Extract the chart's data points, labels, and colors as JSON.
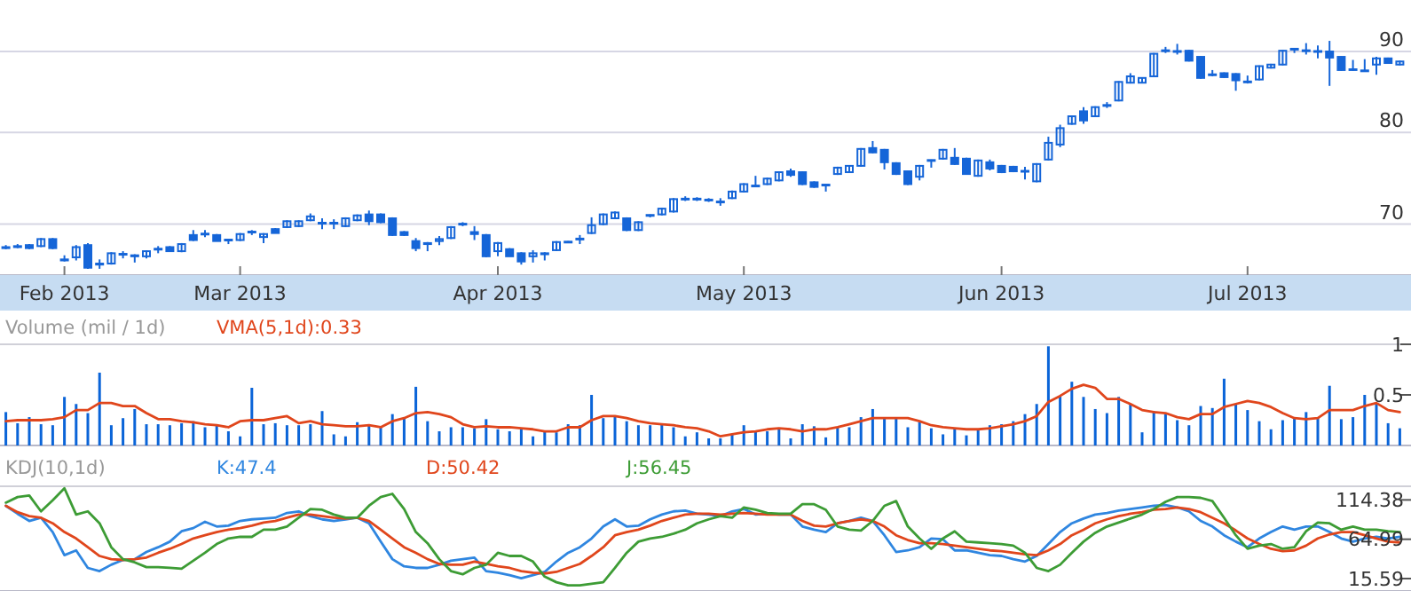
{
  "chart_data": [
    {
      "type": "candlestick",
      "color": "#1565d8",
      "log": "y",
      "grid": "y",
      "ylim": [
        65,
        97
      ],
      "yticks": [
        70,
        80,
        90
      ],
      "categories": [
        null,
        null,
        null,
        null,
        null,
        "Feb 2013",
        null,
        null,
        null,
        null,
        null,
        null,
        null,
        null,
        null,
        null,
        null,
        null,
        null,
        null,
        "Mar 2013",
        null,
        null,
        null,
        null,
        null,
        null,
        null,
        null,
        null,
        null,
        null,
        null,
        null,
        null,
        null,
        null,
        null,
        null,
        null,
        null,
        null,
        "Apr 2013",
        null,
        null,
        null,
        null,
        null,
        null,
        null,
        null,
        null,
        null,
        null,
        null,
        null,
        null,
        null,
        null,
        null,
        null,
        null,
        null,
        "May 2013",
        null,
        null,
        null,
        null,
        null,
        null,
        null,
        null,
        null,
        null,
        null,
        null,
        null,
        null,
        null,
        null,
        null,
        null,
        null,
        null,
        null,
        "Jun 2013",
        null,
        null,
        null,
        null,
        null,
        null,
        null,
        null,
        null,
        null,
        null,
        null,
        null,
        null,
        null,
        null,
        null,
        null,
        null,
        null,
        "Jul 2013",
        null,
        null,
        null,
        null,
        null,
        null,
        null,
        null,
        null,
        null,
        null,
        null,
        null
      ],
      "ohlc": [
        [
          67.6,
          67.9,
          67.5,
          67.7
        ],
        [
          67.8,
          68.0,
          67.6,
          67.7
        ],
        [
          67.9,
          68.0,
          67.5,
          67.6
        ],
        [
          67.8,
          68.6,
          67.7,
          68.5
        ],
        [
          68.5,
          68.6,
          67.5,
          67.6
        ],
        [
          66.4,
          66.9,
          66.3,
          66.5
        ],
        [
          66.7,
          67.9,
          66.4,
          67.7
        ],
        [
          67.9,
          68.1,
          65.6,
          65.7
        ],
        [
          66.1,
          66.5,
          65.6,
          66.0
        ],
        [
          66.1,
          67.2,
          66.0,
          67.1
        ],
        [
          67.0,
          67.3,
          66.6,
          67.0
        ],
        [
          66.9,
          67.0,
          66.2,
          66.8
        ],
        [
          66.8,
          67.4,
          66.6,
          67.3
        ],
        [
          67.5,
          67.8,
          67.1,
          67.5
        ],
        [
          67.7,
          67.8,
          67.3,
          67.3
        ],
        [
          67.3,
          68.1,
          67.2,
          68.0
        ],
        [
          68.9,
          69.4,
          68.3,
          68.4
        ],
        [
          69.0,
          69.4,
          68.7,
          69.0
        ],
        [
          68.9,
          69.0,
          68.3,
          68.3
        ],
        [
          68.4,
          68.5,
          68.0,
          68.4
        ],
        [
          68.4,
          69.1,
          68.3,
          69.0
        ],
        [
          69.2,
          69.4,
          68.9,
          69.2
        ],
        [
          68.7,
          69.1,
          68.1,
          69.0
        ],
        [
          69.5,
          69.6,
          69.1,
          69.1
        ],
        [
          69.7,
          70.4,
          69.6,
          70.3
        ],
        [
          69.8,
          70.4,
          69.7,
          70.3
        ],
        [
          70.4,
          71.1,
          70.3,
          70.8
        ],
        [
          70.1,
          70.6,
          69.5,
          70.1
        ],
        [
          70.1,
          70.5,
          69.5,
          70.1
        ],
        [
          69.8,
          70.7,
          69.7,
          70.6
        ],
        [
          70.4,
          71.0,
          70.3,
          70.9
        ],
        [
          71.0,
          71.4,
          69.9,
          70.3
        ],
        [
          71.0,
          71.1,
          70.1,
          70.2
        ],
        [
          70.6,
          70.7,
          68.8,
          68.9
        ],
        [
          69.2,
          69.3,
          68.8,
          68.9
        ],
        [
          68.3,
          68.6,
          67.3,
          67.6
        ],
        [
          68.1,
          68.2,
          67.3,
          68.0
        ],
        [
          68.3,
          68.8,
          67.9,
          68.5
        ],
        [
          68.6,
          69.8,
          68.5,
          69.7
        ],
        [
          70.0,
          70.2,
          69.8,
          70.0
        ],
        [
          69.2,
          69.8,
          68.4,
          69.0
        ],
        [
          68.9,
          69.0,
          66.7,
          66.8
        ],
        [
          67.3,
          68.2,
          66.8,
          68.1
        ],
        [
          67.5,
          67.6,
          66.8,
          66.8
        ],
        [
          67.1,
          67.2,
          66.0,
          66.3
        ],
        [
          66.8,
          67.4,
          66.2,
          67.1
        ],
        [
          67.1,
          67.2,
          66.4,
          67.0
        ],
        [
          67.4,
          68.3,
          67.3,
          68.2
        ],
        [
          68.2,
          68.3,
          68.1,
          68.2
        ],
        [
          68.5,
          68.9,
          68.0,
          68.5
        ],
        [
          69.1,
          70.7,
          69.0,
          69.9
        ],
        [
          70.0,
          71.1,
          69.9,
          71.0
        ],
        [
          70.6,
          71.3,
          70.5,
          71.2
        ],
        [
          70.6,
          70.7,
          69.3,
          69.4
        ],
        [
          69.4,
          70.3,
          69.3,
          70.2
        ],
        [
          70.9,
          71.0,
          70.7,
          70.9
        ],
        [
          71.0,
          71.7,
          70.9,
          71.6
        ],
        [
          71.3,
          72.7,
          71.2,
          72.6
        ],
        [
          72.6,
          72.9,
          72.4,
          72.6
        ],
        [
          72.6,
          72.8,
          72.4,
          72.6
        ],
        [
          72.5,
          72.7,
          72.3,
          72.5
        ],
        [
          72.3,
          72.7,
          71.9,
          72.3
        ],
        [
          72.7,
          73.5,
          72.6,
          73.4
        ],
        [
          73.4,
          74.3,
          73.3,
          74.2
        ],
        [
          74.0,
          75.1,
          73.9,
          74.0
        ],
        [
          74.2,
          74.9,
          74.1,
          74.8
        ],
        [
          74.6,
          75.6,
          74.5,
          75.5
        ],
        [
          75.6,
          75.9,
          75.0,
          75.2
        ],
        [
          75.5,
          75.6,
          74.1,
          74.2
        ],
        [
          74.4,
          74.5,
          73.8,
          73.9
        ],
        [
          74.1,
          74.2,
          73.4,
          74.1
        ],
        [
          75.3,
          76.1,
          75.2,
          76.0
        ],
        [
          75.5,
          76.3,
          75.4,
          76.2
        ],
        [
          76.2,
          78.2,
          76.1,
          78.1
        ],
        [
          78.2,
          79.0,
          77.6,
          77.7
        ],
        [
          78.0,
          78.1,
          75.8,
          76.6
        ],
        [
          76.5,
          76.6,
          75.2,
          75.3
        ],
        [
          75.6,
          75.7,
          74.1,
          74.2
        ],
        [
          75.0,
          76.3,
          74.6,
          76.2
        ],
        [
          76.8,
          76.9,
          76.0,
          76.8
        ],
        [
          77.0,
          78.1,
          76.9,
          78.0
        ],
        [
          77.1,
          78.2,
          76.3,
          76.4
        ],
        [
          77.0,
          77.1,
          75.2,
          75.3
        ],
        [
          75.1,
          76.9,
          75.0,
          76.8
        ],
        [
          76.6,
          76.9,
          75.7,
          75.9
        ],
        [
          76.2,
          76.3,
          75.4,
          75.5
        ],
        [
          76.1,
          76.2,
          75.5,
          75.6
        ],
        [
          75.6,
          76.1,
          74.7,
          75.6
        ],
        [
          74.5,
          76.5,
          74.4,
          76.4
        ],
        [
          76.9,
          79.5,
          76.8,
          78.8
        ],
        [
          78.6,
          80.9,
          78.3,
          80.5
        ],
        [
          81.0,
          82.0,
          80.9,
          81.9
        ],
        [
          82.5,
          83.0,
          81.0,
          81.4
        ],
        [
          81.9,
          83.1,
          81.8,
          83.0
        ],
        [
          83.2,
          83.6,
          82.9,
          83.2
        ],
        [
          83.8,
          86.2,
          83.7,
          86.1
        ],
        [
          86.0,
          87.2,
          85.9,
          86.8
        ],
        [
          86.0,
          86.7,
          85.9,
          86.6
        ],
        [
          86.8,
          89.8,
          86.7,
          89.7
        ],
        [
          90.1,
          90.6,
          89.8,
          90.1
        ],
        [
          90.0,
          91.0,
          89.6,
          90.0
        ],
        [
          90.1,
          90.2,
          88.7,
          88.8
        ],
        [
          89.3,
          89.4,
          86.5,
          86.6
        ],
        [
          87.0,
          87.6,
          86.8,
          87.0
        ],
        [
          87.2,
          87.3,
          86.6,
          86.7
        ],
        [
          87.1,
          87.2,
          85.0,
          86.3
        ],
        [
          86.1,
          86.9,
          85.9,
          86.1
        ],
        [
          86.4,
          88.2,
          86.3,
          88.1
        ],
        [
          87.9,
          88.4,
          87.8,
          88.3
        ],
        [
          88.3,
          90.2,
          88.2,
          90.1
        ],
        [
          90.3,
          90.4,
          89.8,
          90.3
        ],
        [
          90.1,
          91.1,
          89.6,
          90.1
        ],
        [
          90.0,
          90.8,
          89.1,
          90.0
        ],
        [
          90.0,
          91.4,
          85.6,
          89.2
        ],
        [
          89.3,
          89.4,
          87.5,
          87.6
        ],
        [
          87.7,
          88.9,
          87.5,
          87.6
        ],
        [
          87.5,
          89.0,
          87.4,
          87.5
        ],
        [
          88.3,
          89.3,
          87.0,
          89.1
        ],
        [
          89.1,
          89.2,
          88.4,
          88.5
        ],
        [
          88.3,
          88.8,
          88.2,
          88.7
        ]
      ]
    },
    {
      "type": "bar",
      "title": "Volume (mil / 1d)",
      "tick_labels": "y",
      "ylim": [
        0,
        1
      ],
      "yticks": [
        {
          "value": 1,
          "label": "1"
        },
        0.5
      ],
      "categories": [
        null,
        null,
        null,
        null,
        null,
        null,
        null,
        null,
        null,
        null,
        null,
        null,
        null,
        null,
        null,
        null,
        null,
        null,
        null,
        null,
        null,
        null,
        null,
        null,
        null,
        null,
        null,
        null,
        null,
        null,
        null,
        null,
        null,
        null,
        null,
        null,
        null,
        null,
        null,
        null,
        null,
        null,
        null,
        null,
        null,
        null,
        null,
        null,
        null,
        null,
        null,
        null,
        null,
        null,
        null,
        null,
        null,
        null,
        null,
        null,
        null,
        null,
        null,
        null,
        null,
        null,
        null,
        null,
        null,
        null,
        null,
        null,
        null,
        null,
        null,
        null,
        null,
        null,
        null,
        null,
        null,
        null,
        null,
        null,
        null,
        null,
        null,
        null,
        null,
        null,
        null,
        null,
        null,
        null,
        null,
        null,
        null,
        null,
        null,
        null,
        null,
        null,
        null,
        null,
        null,
        null,
        null,
        null,
        null,
        null,
        null,
        null,
        null,
        null,
        null,
        null,
        null,
        null,
        null,
        null
      ],
      "series": [
        {
          "type": "bar",
          "color": "#0a64d8",
          "values": [
            0.33,
            0.22,
            0.28,
            0.21,
            0.2,
            0.48,
            0.41,
            0.32,
            0.72,
            0.2,
            0.27,
            0.36,
            0.21,
            0.21,
            0.2,
            0.22,
            0.24,
            0.18,
            0.2,
            0.14,
            0.09,
            0.57,
            0.21,
            0.22,
            0.2,
            0.2,
            0.21,
            0.34,
            0.11,
            0.09,
            0.23,
            0.2,
            0.18,
            0.31,
            0.27,
            0.58,
            0.24,
            0.14,
            0.18,
            0.18,
            0.17,
            0.26,
            0.16,
            0.14,
            0.17,
            0.09,
            0.14,
            0.13,
            0.21,
            0.2,
            0.5,
            0.27,
            0.29,
            0.24,
            0.2,
            0.2,
            0.21,
            0.18,
            0.09,
            0.13,
            0.07,
            0.07,
            0.11,
            0.2,
            0.14,
            0.14,
            0.16,
            0.07,
            0.21,
            0.19,
            0.08,
            0.18,
            0.18,
            0.28,
            0.36,
            0.28,
            0.27,
            0.18,
            0.23,
            0.17,
            0.11,
            0.17,
            0.1,
            0.16,
            0.2,
            0.21,
            0.24,
            0.31,
            0.41,
            0.98,
            0.49,
            0.63,
            0.48,
            0.36,
            0.32,
            0.48,
            0.41,
            0.13,
            0.34,
            0.31,
            0.25,
            0.2,
            0.39,
            0.37,
            0.66,
            0.41,
            0.35,
            0.24,
            0.16,
            0.25,
            0.27,
            0.33,
            0.28,
            0.59,
            0.26,
            0.28,
            0.5,
            0.42,
            0.22,
            0.17
          ]
        },
        {
          "type": "line",
          "name": "VMA(5,1d):0.33",
          "color": "#e0461c",
          "values": [
            0.24,
            0.25,
            0.25,
            0.25,
            0.26,
            0.28,
            0.35,
            0.35,
            0.42,
            0.42,
            0.39,
            0.39,
            0.32,
            0.26,
            0.26,
            0.24,
            0.23,
            0.21,
            0.2,
            0.18,
            0.24,
            0.25,
            0.25,
            0.27,
            0.29,
            0.22,
            0.24,
            0.21,
            0.2,
            0.19,
            0.19,
            0.2,
            0.18,
            0.24,
            0.27,
            0.32,
            0.33,
            0.31,
            0.28,
            0.21,
            0.18,
            0.19,
            0.18,
            0.18,
            0.17,
            0.16,
            0.14,
            0.14,
            0.18,
            0.18,
            0.25,
            0.29,
            0.29,
            0.27,
            0.24,
            0.22,
            0.21,
            0.2,
            0.18,
            0.17,
            0.14,
            0.09,
            0.11,
            0.13,
            0.14,
            0.16,
            0.17,
            0.16,
            0.14,
            0.16,
            0.16,
            0.18,
            0.21,
            0.24,
            0.27,
            0.27,
            0.27,
            0.27,
            0.24,
            0.2,
            0.18,
            0.17,
            0.16,
            0.16,
            0.17,
            0.19,
            0.21,
            0.24,
            0.29,
            0.43,
            0.49,
            0.56,
            0.6,
            0.57,
            0.46,
            0.46,
            0.41,
            0.35,
            0.33,
            0.32,
            0.28,
            0.26,
            0.31,
            0.31,
            0.38,
            0.41,
            0.44,
            0.42,
            0.38,
            0.32,
            0.27,
            0.26,
            0.27,
            0.35,
            0.35,
            0.35,
            0.39,
            0.42,
            0.35,
            0.33
          ]
        }
      ]
    },
    {
      "type": "line",
      "title": "KDJ(10,1d)",
      "tick_labels": "y",
      "ylim": [
        0,
        131.5
      ],
      "yticks": [
        114.38,
        64.99,
        15.59
      ],
      "categories": [
        null,
        null,
        null,
        null,
        null,
        null,
        null,
        null,
        null,
        null,
        null,
        null,
        null,
        null,
        null,
        null,
        null,
        null,
        null,
        null,
        null,
        null,
        null,
        null,
        null,
        null,
        null,
        null,
        null,
        null,
        null,
        null,
        null,
        null,
        null,
        null,
        null,
        null,
        null,
        null,
        null,
        null,
        null,
        null,
        null,
        null,
        null,
        null,
        null,
        null,
        null,
        null,
        null,
        null,
        null,
        null,
        null,
        null,
        null,
        null,
        null,
        null,
        null,
        null,
        null,
        null,
        null,
        null,
        null,
        null,
        null,
        null,
        null,
        null,
        null,
        null,
        null,
        null,
        null,
        null,
        null,
        null,
        null,
        null,
        null,
        null,
        null,
        null,
        null,
        null,
        null,
        null,
        null,
        null,
        null,
        null,
        null,
        null,
        null,
        null,
        null,
        null,
        null,
        null,
        null,
        null,
        null,
        null,
        null,
        null,
        null,
        null,
        null,
        null,
        null,
        null,
        null,
        null,
        null,
        null
      ],
      "series": [
        {
          "name": "K:47.4",
          "color": "#2f86e0",
          "values": [
            107,
            97,
            88,
            92,
            74,
            45,
            51,
            29,
            25,
            33,
            39,
            40,
            49,
            55,
            62,
            75,
            79,
            87,
            81,
            82,
            88,
            90,
            91,
            92,
            98,
            100,
            94,
            90,
            88,
            90,
            92,
            85,
            62,
            40,
            31,
            29,
            29,
            33,
            38,
            40,
            42,
            25,
            23,
            20,
            16,
            20,
            24,
            37,
            48,
            55,
            66,
            81,
            90,
            81,
            82,
            90,
            96,
            100,
            101,
            97,
            96,
            94,
            100,
            103,
            96,
            97,
            96,
            96,
            81,
            77,
            74,
            85,
            88,
            92,
            88,
            70,
            49,
            51,
            55,
            66,
            65,
            51,
            51,
            48,
            45,
            44,
            40,
            37,
            44,
            59,
            74,
            85,
            91,
            96,
            98,
            101,
            103,
            105,
            107,
            108,
            105,
            100,
            88,
            81,
            70,
            62,
            55,
            66,
            74,
            81,
            77,
            81,
            81,
            74,
            66,
            62,
            66,
            68,
            66,
            68
          ]
        },
        {
          "name": "D:50.42",
          "color": "#e0461c",
          "values": [
            107,
            99,
            94,
            92,
            85,
            74,
            66,
            55,
            44,
            40,
            39,
            40,
            42,
            48,
            53,
            59,
            66,
            70,
            74,
            77,
            79,
            82,
            86,
            88,
            92,
            96,
            96,
            94,
            92,
            91,
            92,
            88,
            77,
            66,
            55,
            48,
            40,
            34,
            33,
            33,
            37,
            34,
            31,
            29,
            25,
            23,
            22,
            24,
            29,
            34,
            44,
            55,
            70,
            74,
            77,
            82,
            88,
            92,
            96,
            97,
            97,
            96,
            97,
            98,
            97,
            96,
            96,
            96,
            88,
            82,
            81,
            85,
            88,
            90,
            88,
            81,
            70,
            64,
            60,
            60,
            59,
            57,
            55,
            53,
            51,
            50,
            48,
            46,
            45,
            51,
            59,
            70,
            77,
            85,
            90,
            94,
            97,
            99,
            102,
            103,
            105,
            103,
            99,
            92,
            85,
            76,
            66,
            59,
            53,
            50,
            51,
            57,
            66,
            71,
            74,
            74,
            70,
            66,
            62,
            61
          ]
        },
        {
          "name": "J:56.45",
          "color": "#3d9c35",
          "values": [
            111,
            118,
            120,
            100,
            114,
            129,
            96,
            100,
            85,
            55,
            40,
            36,
            30,
            30,
            29,
            28,
            38,
            48,
            59,
            66,
            68,
            68,
            77,
            77,
            81,
            92,
            103,
            102,
            96,
            92,
            92,
            107,
            118,
            122,
            103,
            74,
            60,
            40,
            25,
            21,
            29,
            33,
            48,
            44,
            44,
            37,
            18,
            11,
            7,
            7,
            9,
            11,
            29,
            48,
            62,
            66,
            68,
            72,
            77,
            85,
            90,
            94,
            92,
            105,
            102,
            98,
            97,
            97,
            109,
            109,
            102,
            81,
            77,
            76,
            88,
            107,
            113,
            81,
            66,
            53,
            66,
            75,
            62,
            61,
            60,
            59,
            57,
            48,
            29,
            25,
            33,
            48,
            62,
            73,
            81,
            86,
            91,
            96,
            103,
            112,
            118,
            118,
            117,
            113,
            92,
            70,
            53,
            57,
            59,
            53,
            55,
            75,
            86,
            85,
            77,
            81,
            77,
            77,
            75,
            74
          ]
        }
      ]
    }
  ]
}
